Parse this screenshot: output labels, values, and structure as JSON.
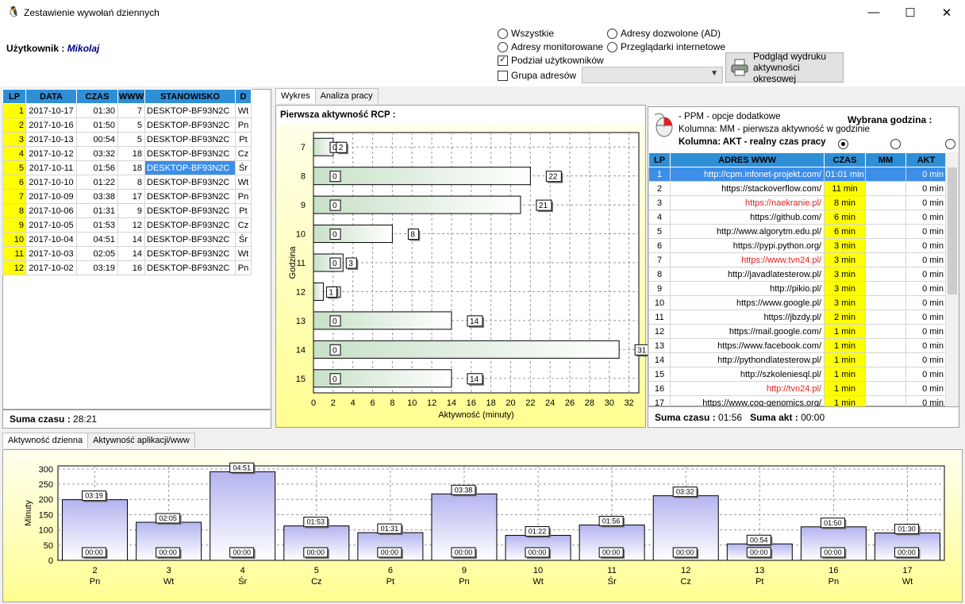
{
  "window": {
    "title": "Zestawienie wywołań dziennych",
    "minimize": "—",
    "maximize": "☐",
    "close": "✕"
  },
  "user": {
    "label": "Użytkownik :",
    "name": "Mikolaj"
  },
  "options": {
    "wszystkie": "Wszystkie",
    "monitorowane": "Adresy monitorowane",
    "podzial": "Podział użytkowników",
    "grupa": "Grupa adresów",
    "dozwolone": "Adresy dozwolone (AD)",
    "przegladarki": "Przeglądarki internetowe"
  },
  "print_button": {
    "line1": "Podgląd wydruku",
    "line2": "aktywności okresowej"
  },
  "left_table": {
    "headers": [
      "LP",
      "DATA",
      "CZAS",
      "WWW",
      "STANOWISKO",
      "D"
    ],
    "rows": [
      [
        "1",
        "2017-10-17",
        "01:30",
        "7",
        "DESKTOP-BF93N2C",
        "Wt"
      ],
      [
        "2",
        "2017-10-16",
        "01:50",
        "5",
        "DESKTOP-BF93N2C",
        "Pn"
      ],
      [
        "3",
        "2017-10-13",
        "00:54",
        "5",
        "DESKTOP-BF93N2C",
        "Pt"
      ],
      [
        "4",
        "2017-10-12",
        "03:32",
        "18",
        "DESKTOP-BF93N2C",
        "Cz"
      ],
      [
        "5",
        "2017-10-11",
        "01:56",
        "18",
        "DESKTOP-BF93N2C",
        "Śr"
      ],
      [
        "6",
        "2017-10-10",
        "01:22",
        "8",
        "DESKTOP-BF93N2C",
        "Wt"
      ],
      [
        "7",
        "2017-10-09",
        "03:38",
        "17",
        "DESKTOP-BF93N2C",
        "Pn"
      ],
      [
        "8",
        "2017-10-06",
        "01:31",
        "9",
        "DESKTOP-BF93N2C",
        "Pt"
      ],
      [
        "9",
        "2017-10-05",
        "01:53",
        "12",
        "DESKTOP-BF93N2C",
        "Cz"
      ],
      [
        "10",
        "2017-10-04",
        "04:51",
        "14",
        "DESKTOP-BF93N2C",
        "Śr"
      ],
      [
        "11",
        "2017-10-03",
        "02:05",
        "14",
        "DESKTOP-BF93N2C",
        "Wt"
      ],
      [
        "12",
        "2017-10-02",
        "03:19",
        "16",
        "DESKTOP-BF93N2C",
        "Pn"
      ]
    ],
    "selected_row": 4,
    "sum_label": "Suma czasu :",
    "sum_value": "28:21"
  },
  "mid_tabs": [
    "Wykres",
    "Analiza pracy"
  ],
  "rcp_title": "Pierwsza aktywność RCP :",
  "chart_data": [
    {
      "type": "bar",
      "orientation": "horizontal",
      "title": "",
      "xlabel": "Aktywność (minuty)",
      "ylabel": "Godzina",
      "xlim": [
        0,
        33
      ],
      "xticks": [
        0,
        2,
        4,
        6,
        8,
        10,
        12,
        14,
        16,
        18,
        20,
        22,
        24,
        26,
        28,
        30,
        32
      ],
      "categories": [
        "7",
        "8",
        "9",
        "10",
        "11",
        "12",
        "13",
        "14",
        "15"
      ],
      "values": [
        2,
        22,
        21,
        8,
        3,
        1,
        14,
        31,
        14
      ],
      "start_labels": [
        "0",
        "0",
        "0",
        "0",
        "0",
        "0",
        "0",
        "0",
        "0"
      ],
      "end_labels": [
        "2",
        "22",
        "21",
        "8",
        "3",
        "1",
        "14",
        "31",
        "14"
      ]
    },
    {
      "type": "bar",
      "title": "",
      "xlabel": "",
      "ylabel": "Minuty",
      "ylim": [
        0,
        310
      ],
      "yticks": [
        0,
        50,
        100,
        150,
        200,
        250,
        300
      ],
      "categories": [
        "2",
        "3",
        "4",
        "5",
        "6",
        "9",
        "10",
        "11",
        "12",
        "13",
        "16",
        "17"
      ],
      "sub_categories": [
        "Pn",
        "Wt",
        "Śr",
        "Cz",
        "Pt",
        "Pn",
        "Wt",
        "Śr",
        "Cz",
        "Pt",
        "Pn",
        "Wt"
      ],
      "values": [
        199,
        125,
        291,
        113,
        91,
        218,
        82,
        116,
        212,
        54,
        110,
        90
      ],
      "top_labels": [
        "03:19",
        "02:05",
        "04:51",
        "01:53",
        "01:31",
        "03:38",
        "01:22",
        "01:56",
        "03:32",
        "00:54",
        "01:50",
        "01:30"
      ],
      "bottom_labels": [
        "00:00",
        "00:00",
        "00:00",
        "00:00",
        "00:00",
        "00:00",
        "00:00",
        "00:00",
        "00:00",
        "00:00",
        "00:00",
        "00:00"
      ]
    }
  ],
  "right": {
    "ppm": "- PPM - opcje dodatkowe",
    "mm_note": "Kolumna: MM - pierwsza aktywność w godzinie",
    "akt_note": "Kolumna: AKT - realny czas pracy",
    "wybrana": "Wybrana godzina :",
    "headers": [
      "LP",
      "ADRES WWW",
      "CZAS",
      "MM",
      "AKT"
    ],
    "rows": [
      [
        "1",
        "http://cpm.infonet-projekt.com/",
        "01:01 min",
        "",
        "0 min"
      ],
      [
        "2",
        "https://stackoverflow.com/",
        "11 min",
        "",
        "0 min"
      ],
      [
        "3",
        "https://naekranie.pl/",
        "8 min",
        "",
        "0 min"
      ],
      [
        "4",
        "https://github.com/",
        "6 min",
        "",
        "0 min"
      ],
      [
        "5",
        "http://www.algorytm.edu.pl/",
        "6 min",
        "",
        "0 min"
      ],
      [
        "6",
        "https://pypi.python.org/",
        "3 min",
        "",
        "0 min"
      ],
      [
        "7",
        "https://www.tvn24.pl/",
        "3 min",
        "",
        "0 min"
      ],
      [
        "8",
        "http://javadlatesterow.pl/",
        "3 min",
        "",
        "0 min"
      ],
      [
        "9",
        "http://pikio.pl/",
        "3 min",
        "",
        "0 min"
      ],
      [
        "10",
        "https://www.google.pl/",
        "3 min",
        "",
        "0 min"
      ],
      [
        "11",
        "https://jbzdy.pl/",
        "2 min",
        "",
        "0 min"
      ],
      [
        "12",
        "https://mail.google.com/",
        "1 min",
        "",
        "0 min"
      ],
      [
        "13",
        "https://www.facebook.com/",
        "1 min",
        "",
        "0 min"
      ],
      [
        "14",
        "http://pythondlatesterow.pl/",
        "1 min",
        "",
        "0 min"
      ],
      [
        "15",
        "http://szkoleniesql.pl/",
        "1 min",
        "",
        "0 min"
      ],
      [
        "16",
        "http://tvn24.pl/",
        "1 min",
        "",
        "0 min"
      ],
      [
        "17",
        "https://www.cog-genomics.org/",
        "1 min",
        "",
        "0 min"
      ]
    ],
    "red_rows": [
      2,
      6,
      15
    ],
    "sum_label": "Suma czasu :",
    "sum_value": "01:56",
    "akt_label": "Suma akt :",
    "akt_value": "00:00"
  },
  "bottom_tabs": [
    "Aktywność dzienna",
    "Aktywność aplikacji/www"
  ]
}
